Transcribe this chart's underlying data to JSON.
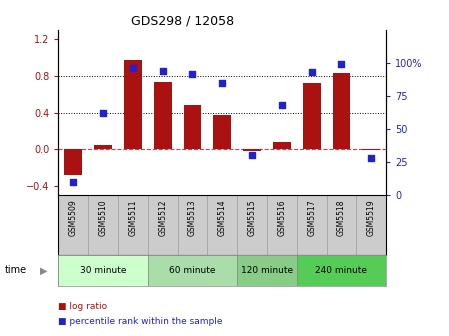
{
  "title": "GDS298 / 12058",
  "samples": [
    "GSM5509",
    "GSM5510",
    "GSM5511",
    "GSM5512",
    "GSM5513",
    "GSM5514",
    "GSM5515",
    "GSM5516",
    "GSM5517",
    "GSM5518",
    "GSM5519"
  ],
  "log_ratio": [
    -0.28,
    0.04,
    0.97,
    0.73,
    0.48,
    0.37,
    -0.02,
    0.08,
    0.72,
    0.83,
    -0.01
  ],
  "percentile": [
    10,
    62,
    96,
    94,
    92,
    85,
    30,
    68,
    93,
    99,
    28
  ],
  "bar_color": "#aa1111",
  "dot_color": "#2222cc",
  "ylim_left": [
    -0.5,
    1.3
  ],
  "ylim_right": [
    0,
    125
  ],
  "yticks_left": [
    -0.4,
    0.0,
    0.4,
    0.8,
    1.2
  ],
  "yticks_right": [
    0,
    25,
    50,
    75,
    100
  ],
  "ylabel_right_ticks": [
    "0",
    "25",
    "50",
    "75",
    "100%"
  ],
  "groups": [
    {
      "label": "30 minute",
      "start": 0,
      "end": 2,
      "color": "#ccffcc"
    },
    {
      "label": "60 minute",
      "start": 3,
      "end": 5,
      "color": "#aaddaa"
    },
    {
      "label": "120 minute",
      "start": 6,
      "end": 7,
      "color": "#88cc88"
    },
    {
      "label": "240 minute",
      "start": 8,
      "end": 10,
      "color": "#55cc55"
    }
  ],
  "time_label": "time",
  "legend_bar_label": "log ratio",
  "legend_dot_label": "percentile rank within the sample",
  "hline_color": "#cc4444",
  "grid_color": "#000000",
  "bg_color": "#ffffff",
  "xticklabel_bg": "#cccccc"
}
